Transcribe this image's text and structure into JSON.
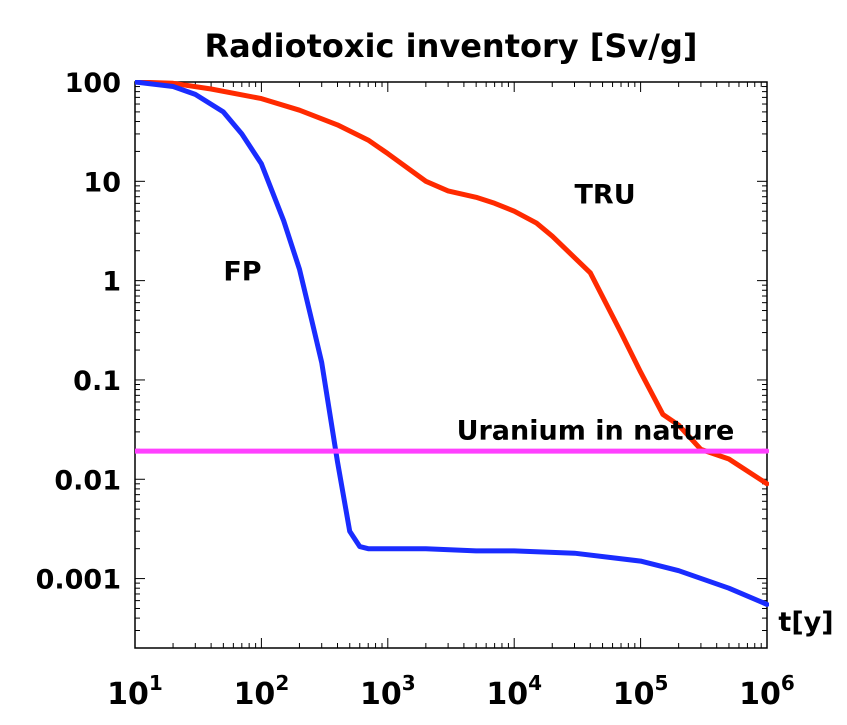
{
  "chart_data": {
    "type": "line",
    "title": "Radiotoxic inventory [Sv/g]",
    "xlabel": "t[y]",
    "ylabel": "",
    "x_scale": "log",
    "y_scale": "log",
    "xlim": [
      10,
      1000000
    ],
    "ylim": [
      0.0002,
      100
    ],
    "x_ticks": [
      {
        "value": 10,
        "base": "10",
        "exp": "1"
      },
      {
        "value": 100,
        "base": "10",
        "exp": "2"
      },
      {
        "value": 1000,
        "base": "10",
        "exp": "3"
      },
      {
        "value": 10000,
        "base": "10",
        "exp": "4"
      },
      {
        "value": 100000,
        "base": "10",
        "exp": "5"
      },
      {
        "value": 1000000,
        "base": "10",
        "exp": "6"
      }
    ],
    "y_ticks": [
      {
        "value": 100,
        "label": "100"
      },
      {
        "value": 10,
        "label": "10"
      },
      {
        "value": 1,
        "label": "1"
      },
      {
        "value": 0.1,
        "label": "0.1"
      },
      {
        "value": 0.01,
        "label": "0.01"
      },
      {
        "value": 0.001,
        "label": "0.001"
      }
    ],
    "grid": false,
    "series": [
      {
        "name": "TRU",
        "color": "#ff2a00",
        "x": [
          10,
          20,
          40,
          100,
          200,
          400,
          700,
          1000,
          2000,
          3000,
          5000,
          7000,
          10000,
          15000,
          20000,
          40000,
          70000,
          100000,
          150000,
          200000,
          300000,
          500000,
          1000000
        ],
        "y": [
          100,
          97,
          85,
          68,
          52,
          37,
          26,
          19,
          10,
          8,
          6.9,
          6,
          5,
          3.8,
          2.8,
          1.2,
          0.3,
          0.12,
          0.045,
          0.035,
          0.02,
          0.016,
          0.009
        ]
      },
      {
        "name": "FP",
        "color": "#1a2cff",
        "x": [
          10,
          20,
          30,
          50,
          70,
          100,
          150,
          200,
          250,
          300,
          400,
          500,
          600,
          700,
          1000,
          2000,
          5000,
          10000,
          30000,
          100000,
          200000,
          500000,
          1000000
        ],
        "y": [
          100,
          90,
          75,
          50,
          30,
          15,
          4,
          1.3,
          0.4,
          0.15,
          0.015,
          0.003,
          0.0021,
          0.002,
          0.002,
          0.002,
          0.0019,
          0.0019,
          0.0018,
          0.0015,
          0.0012,
          0.0008,
          0.00055
        ]
      },
      {
        "name": "Uranium in nature",
        "color": "#ff40ff",
        "x": [
          10,
          1000000
        ],
        "y": [
          0.0192,
          0.0192
        ]
      }
    ],
    "annotations": [
      {
        "text": "TRU",
        "x": 30000,
        "y": 6
      },
      {
        "text": "FP",
        "x": 50,
        "y": 1
      },
      {
        "text": "Uranium in nature",
        "x": 3500,
        "y": 0.025
      }
    ]
  }
}
